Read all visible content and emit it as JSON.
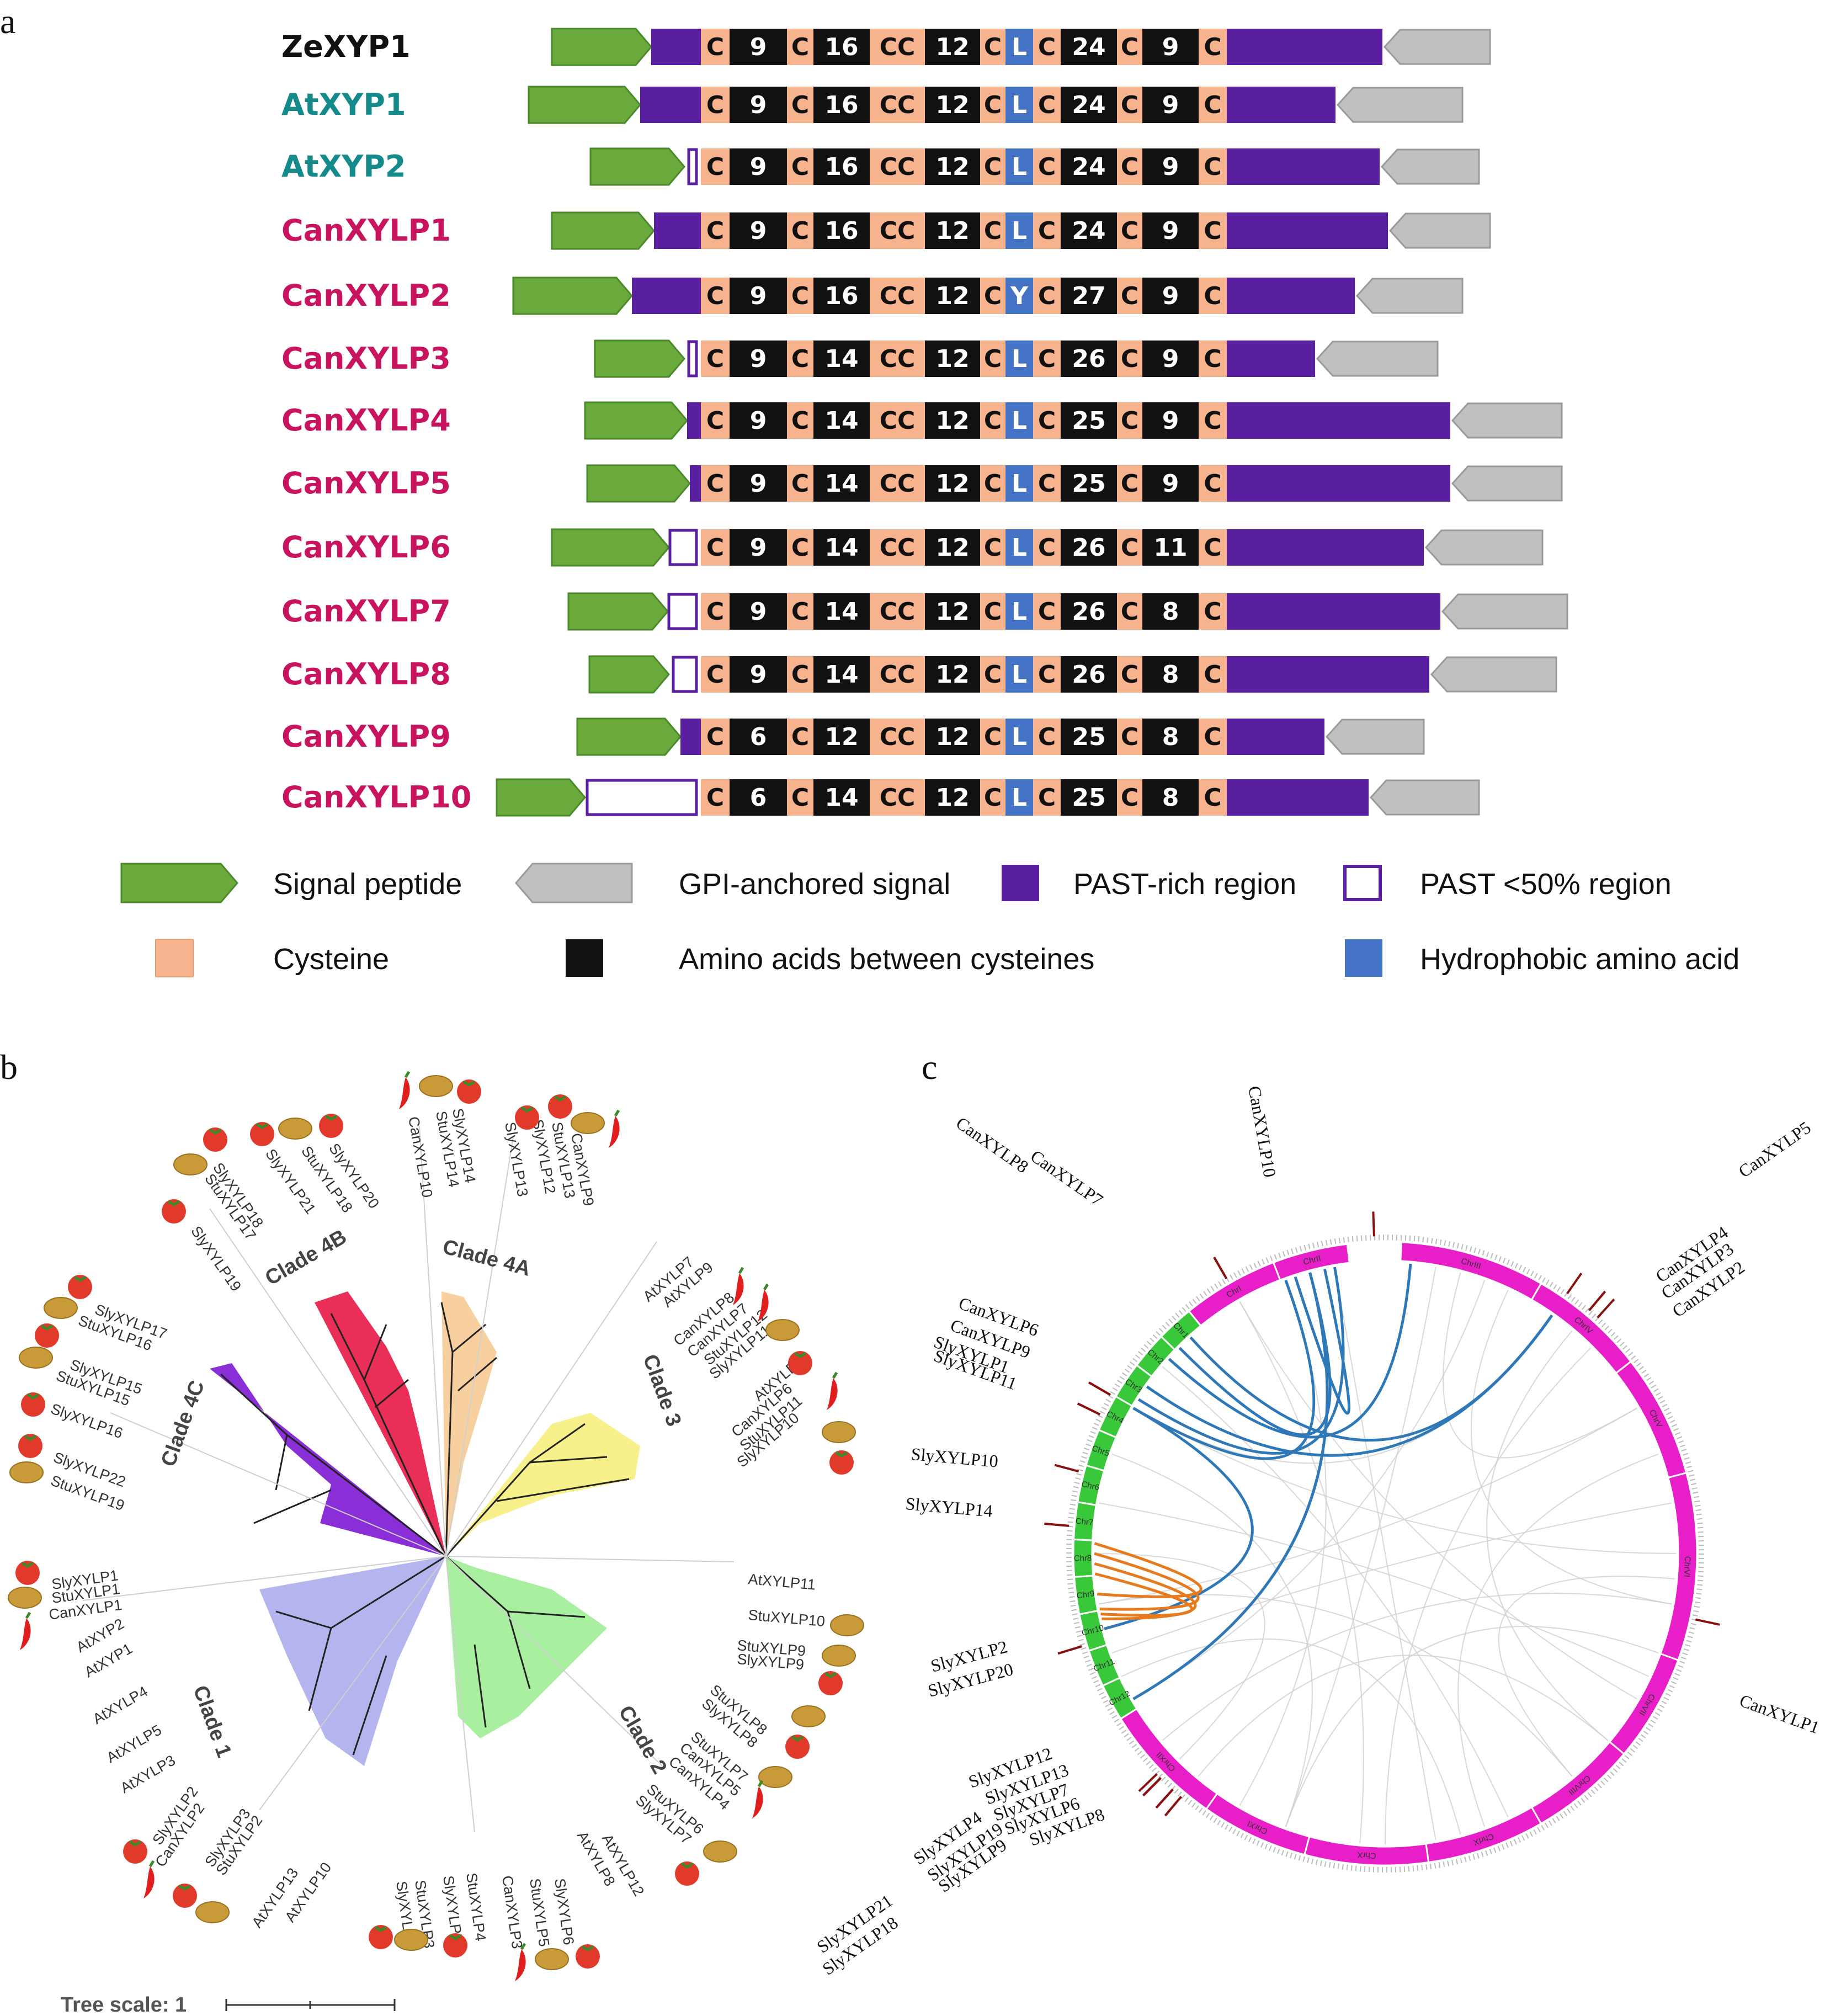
{
  "panels": {
    "a": "a",
    "b": "b",
    "c": "c"
  },
  "colors": {
    "signal": "#6aaa3c",
    "gpi": "#c0c0c0",
    "past": "#5a1fa0",
    "cys": "#f7b38e",
    "black": "#111111",
    "hydro": "#4472c4",
    "zeyp": "#111111",
    "at": "#158a8a",
    "can": "#c8145f",
    "chrPepper": "#e81ec8",
    "chrTomato": "#38c83a",
    "linkBlue": "#2e78b8",
    "linkOrange": "#e87a1e",
    "cladePink": "#e8244e",
    "cladeOrange": "#f8d0a0",
    "cladeYellow": "#f8f08a",
    "cladePurple": "#8a2ed8",
    "cladeLavender": "#b4b4ee",
    "cladeGreen": "#a8f0a0"
  },
  "domains": {
    "seq": [
      {
        "name": "ZeXYP1",
        "grp": "ze",
        "sig": [
          1000,
          1180
        ],
        "pastType": "full",
        "past": [
          1180,
          1270
        ],
        "vals": [
          "9",
          "16",
          "12",
          "L",
          "24",
          "9"
        ],
        "tail": [
          2223,
          2505
        ],
        "gpi": [
          2505,
          2700
        ]
      },
      {
        "name": "AtXYP1",
        "grp": "at",
        "sig": [
          958,
          1160
        ],
        "pastType": "full",
        "past": [
          1160,
          1270
        ],
        "vals": [
          "9",
          "16",
          "12",
          "L",
          "24",
          "9"
        ],
        "tail": [
          2223,
          2420
        ],
        "gpi": [
          2420,
          2650
        ]
      },
      {
        "name": "AtXYP2",
        "grp": "at",
        "sig": [
          1070,
          1240
        ],
        "pastType": "hollow",
        "past": [
          1246,
          1270
        ],
        "vals": [
          "9",
          "16",
          "12",
          "L",
          "24",
          "9"
        ],
        "tail": [
          2223,
          2500
        ],
        "gpi": [
          2500,
          2680
        ]
      },
      {
        "name": "CanXYLP1",
        "grp": "can",
        "sig": [
          1000,
          1185
        ],
        "pastType": "full",
        "past": [
          1185,
          1270
        ],
        "vals": [
          "9",
          "16",
          "12",
          "L",
          "24",
          "9"
        ],
        "tail": [
          2223,
          2515
        ],
        "gpi": [
          2515,
          2700
        ]
      },
      {
        "name": "CanXYLP2",
        "grp": "can",
        "sig": [
          930,
          1145
        ],
        "pastType": "full",
        "past": [
          1145,
          1270
        ],
        "vals": [
          "9",
          "16",
          "12",
          "Y",
          "27",
          "9"
        ],
        "tail": [
          2223,
          2455
        ],
        "gpi": [
          2455,
          2650
        ]
      },
      {
        "name": "CanXYLP3",
        "grp": "can",
        "sig": [
          1078,
          1240
        ],
        "pastType": "hollow",
        "past": [
          1246,
          1270
        ],
        "vals": [
          "9",
          "14",
          "12",
          "L",
          "26",
          "9"
        ],
        "tail": [
          2223,
          2383
        ],
        "gpi": [
          2383,
          2605
        ]
      },
      {
        "name": "CanXYLP4",
        "grp": "can",
        "sig": [
          1060,
          1245
        ],
        "pastType": "full",
        "past": [
          1245,
          1270
        ],
        "vals": [
          "9",
          "14",
          "12",
          "L",
          "25",
          "9"
        ],
        "tail": [
          2223,
          2628
        ],
        "gpi": [
          2628,
          2830
        ]
      },
      {
        "name": "CanXYLP5",
        "grp": "can",
        "sig": [
          1064,
          1250
        ],
        "pastType": "full",
        "past": [
          1250,
          1270
        ],
        "vals": [
          "9",
          "14",
          "12",
          "L",
          "25",
          "9"
        ],
        "tail": [
          2223,
          2628
        ],
        "gpi": [
          2628,
          2830
        ]
      },
      {
        "name": "CanXYLP6",
        "grp": "can",
        "sig": [
          1000,
          1212
        ],
        "pastType": "hollow",
        "past": [
          1212,
          1270
        ],
        "vals": [
          "9",
          "14",
          "12",
          "L",
          "26",
          "11"
        ],
        "tail": [
          2223,
          2580
        ],
        "gpi": [
          2580,
          2795
        ]
      },
      {
        "name": "CanXYLP7",
        "grp": "can",
        "sig": [
          1030,
          1210
        ],
        "pastType": "hollow",
        "past": [
          1210,
          1270
        ],
        "vals": [
          "9",
          "14",
          "12",
          "L",
          "26",
          "8"
        ],
        "tail": [
          2223,
          2610
        ],
        "gpi": [
          2610,
          2840
        ]
      },
      {
        "name": "CanXYLP8",
        "grp": "can",
        "sig": [
          1068,
          1212
        ],
        "pastType": "hollow",
        "past": [
          1218,
          1270
        ],
        "vals": [
          "9",
          "14",
          "12",
          "L",
          "26",
          "8"
        ],
        "tail": [
          2223,
          2590
        ],
        "gpi": [
          2590,
          2820
        ]
      },
      {
        "name": "CanXYLP9",
        "grp": "can",
        "sig": [
          1046,
          1233
        ],
        "pastType": "full",
        "past": [
          1233,
          1270
        ],
        "vals": [
          "6",
          "12",
          "12",
          "L",
          "25",
          "8"
        ],
        "tail": [
          2223,
          2400
        ],
        "gpi": [
          2400,
          2580
        ]
      },
      {
        "name": "CanXYLP10",
        "grp": "can",
        "sig": [
          900,
          1060
        ],
        "pastType": "hollow",
        "past": [
          1062,
          1270
        ],
        "vals": [
          "6",
          "14",
          "12",
          "L",
          "25",
          "8"
        ],
        "tail": [
          2223,
          2480
        ],
        "gpi": [
          2480,
          2680
        ]
      }
    ],
    "c": "C",
    "cc": "CC",
    "legend": {
      "signal": "Signal peptide",
      "gpi": "GPI-anchored signal",
      "past": "PAST-rich region",
      "pastlow": "PAST <50% region",
      "cys": "Cysteine",
      "aa": "Amino acids between cysteines",
      "hydro": "Hydrophobic amino acid"
    }
  },
  "tree": {
    "scale_label": "Tree scale: 1",
    "clades": [
      "Clade 4B",
      "Clade 4A",
      "Clade 3",
      "Clade 4C",
      "Clade 1",
      "Clade 2"
    ],
    "leaves_4A": [
      "CanXYLP10",
      "StuXYLP14",
      "SlyXYLP14",
      "SlyXYLP13",
      "SlyXYLP12",
      "StuXYLP13",
      "CanXYLP9"
    ],
    "leaves_4B": [
      "SlyXYLP18",
      "StuXYLP17",
      "SlyXYLP21",
      "StuXYLP18",
      "SlyXYLP20",
      "SlyXYLP19"
    ],
    "leaves_4C": [
      "SlyXYLP17",
      "StuXYLP16",
      "SlyXYLP15",
      "StuXYLP15",
      "SlyXYLP16",
      "SlyXYLP22",
      "StuXYLP19"
    ],
    "leaves_3": [
      "AtXYLP7",
      "AtXYLP9",
      "CanXYLP8",
      "CanXYLP7",
      "StuXYLP12",
      "SlyXYLP11",
      "AtXYLP6",
      "CanXYLP6",
      "StuXYLP11",
      "SlyXYLP10"
    ],
    "leaves_1": [
      "SlyXYLP1",
      "StuXYLP1",
      "CanXYLP1",
      "AtXYP2",
      "AtXYP1",
      "AtXYLP4",
      "AtXYLP5",
      "AtXYLP3",
      "SlyXYLP2",
      "CanXYLP2",
      "SlyXYLP3",
      "StuXYLP2",
      "AtXYLP13",
      "AtXYLP10"
    ],
    "leaves_2a": [
      "AtXYLP11",
      "StuXYLP10",
      "StuXYLP9",
      "SlyXYLP9",
      "StuXYLP8",
      "SlyXYLP8",
      "StuXYLP7",
      "CanXYLP5",
      "CanXYLP4",
      "StuXYLP6",
      "SlyXYLP7",
      "AtXYLP12",
      "AtXYLP8"
    ],
    "leaves_2b": [
      "SlyXYLP4",
      "StuXYLP3",
      "SlyXYLP5",
      "StuXYLP4",
      "CanXYLP3",
      "StuXYLP5",
      "SlyXYLP6"
    ]
  },
  "circos": {
    "chr_pepper": [
      "ChrIII",
      "ChrIV",
      "ChrV",
      "ChrVI",
      "ChrVII",
      "ChrVIII",
      "ChrIX",
      "ChrX",
      "ChrXI",
      "ChrXII",
      "ChrI",
      "ChrII"
    ],
    "chr_tomato": [
      "Chr1",
      "Chr2",
      "Chr3",
      "Chr4",
      "Chr5",
      "Chr6",
      "Chr7",
      "Chr8",
      "Chr9",
      "Chr10",
      "Chr11",
      "Chr12"
    ],
    "labels": [
      "CanXYLP10",
      "CanXYLP8",
      "CanXYLP7",
      "CanXYLP5",
      "CanXYLP4",
      "CanXYLP3",
      "CanXYLP2",
      "CanXYLP6",
      "CanXYLP9",
      "SlyXYLP1",
      "SlyXYLP11",
      "SlyXYLP10",
      "SlyXYLP14",
      "SlyXYLP2",
      "SlyXYLP20",
      "CanXYLP1",
      "SlyXYLP12",
      "SlyXYLP13",
      "SlyXYLP7",
      "SlyXYLP6",
      "SlyXYLP8",
      "SlyXYLP4",
      "SlyXYLP19",
      "SlyXYLP9",
      "SlyXYLP21",
      "SlyXYLP18"
    ]
  }
}
